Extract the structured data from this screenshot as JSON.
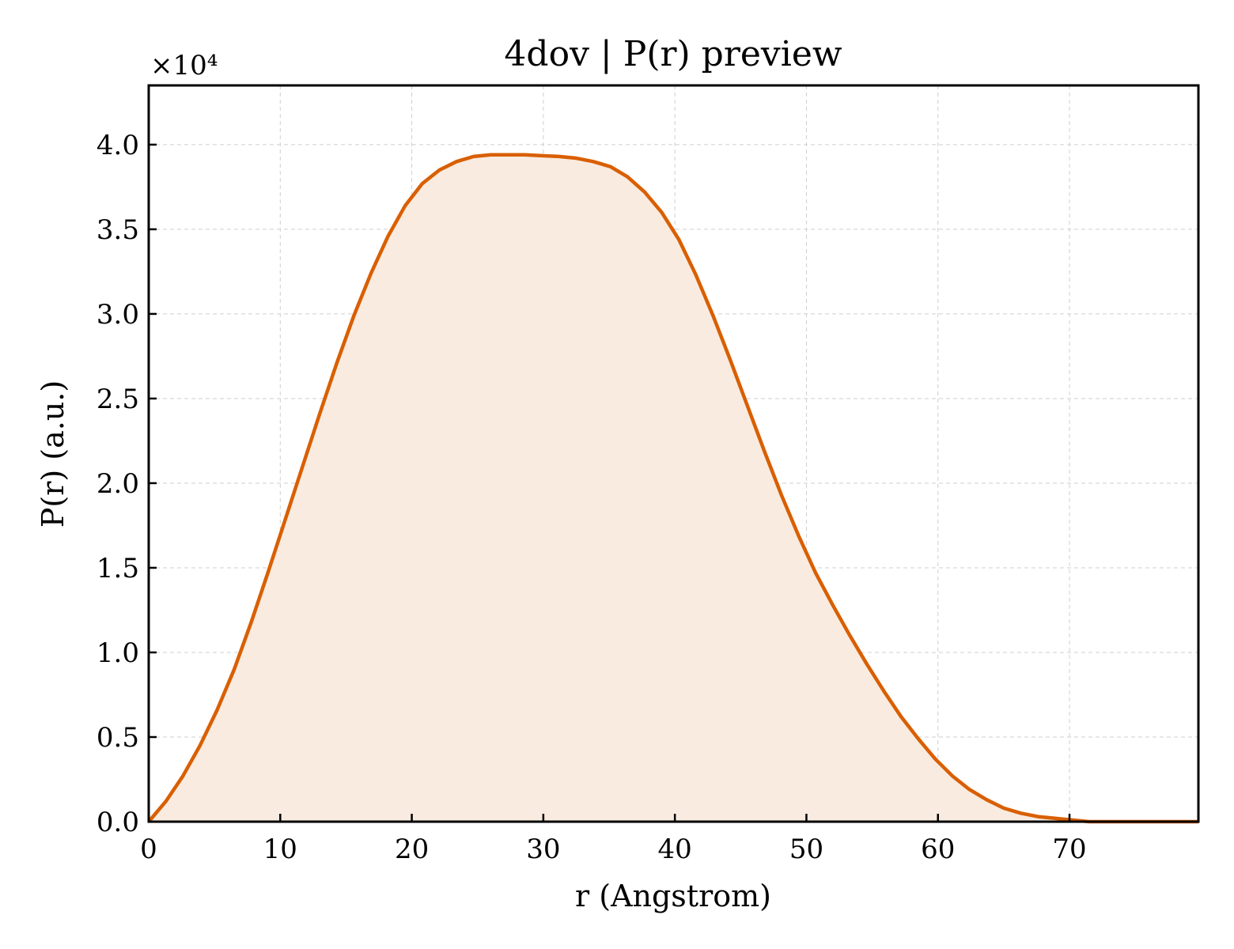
{
  "chart_data": {
    "type": "area",
    "title": "4dov | P(r) preview",
    "xlabel": "r (Angstrom)",
    "ylabel": "P(r) (a.u.)",
    "y_offset_label": "×10⁴",
    "y_scale": 10000,
    "xlim": [
      0,
      79.8
    ],
    "ylim": [
      0,
      43500
    ],
    "x_ticks": [
      0,
      10,
      20,
      30,
      40,
      50,
      60,
      70
    ],
    "y_ticks": [
      0,
      5000,
      10000,
      15000,
      20000,
      25000,
      30000,
      35000,
      40000
    ],
    "y_tick_labels": [
      "0.0",
      "0.5",
      "1.0",
      "1.5",
      "2.0",
      "2.5",
      "3.0",
      "3.5",
      "4.0"
    ],
    "grid": true,
    "line_color": "#d95f02",
    "fill_color": "#f9ebe0",
    "series": [
      {
        "x": [
          0,
          1.3,
          2.6,
          3.9,
          5.2,
          6.5,
          7.8,
          9.1,
          10.4,
          11.7,
          13.0,
          14.3,
          15.6,
          16.9,
          18.2,
          19.5,
          20.8,
          22.1,
          23.4,
          24.7,
          26.0,
          27.3,
          28.6,
          29.9,
          31.2,
          32.5,
          33.8,
          35.1,
          36.4,
          37.7,
          39.0,
          40.3,
          41.6,
          42.9,
          44.2,
          45.5,
          46.8,
          48.1,
          49.4,
          50.7,
          52.0,
          53.3,
          54.6,
          55.9,
          57.2,
          58.5,
          59.8,
          61.1,
          62.4,
          63.7,
          65.0,
          66.3,
          67.6,
          68.9,
          70.2,
          71.5,
          72.8,
          74.1,
          75.4,
          76.7,
          78.0,
          79.3,
          79.8
        ],
        "y": [
          0,
          1200,
          2700,
          4500,
          6600,
          9000,
          11800,
          14800,
          17900,
          21000,
          24100,
          27100,
          29900,
          32400,
          34600,
          36400,
          37700,
          38500,
          39000,
          39300,
          39400,
          39400,
          39400,
          39350,
          39300,
          39200,
          39000,
          38700,
          38100,
          37200,
          36000,
          34400,
          32300,
          29900,
          27300,
          24600,
          21900,
          19300,
          16900,
          14700,
          12800,
          11000,
          9300,
          7700,
          6200,
          4900,
          3700,
          2700,
          1900,
          1300,
          800,
          500,
          300,
          200,
          100,
          0,
          0,
          0,
          0,
          0,
          0,
          0,
          0
        ]
      }
    ]
  }
}
